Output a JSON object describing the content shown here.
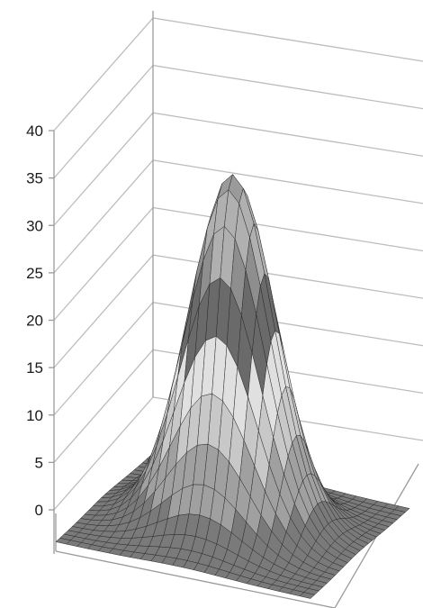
{
  "chart_data": {
    "type": "surface",
    "title": "",
    "xlabel": "",
    "ylabel": "",
    "zlabel": "",
    "zlim": [
      0,
      40
    ],
    "z_ticks": [
      "0",
      "5",
      "10",
      "15",
      "20",
      "25",
      "30",
      "35",
      "40"
    ],
    "grid": true,
    "legend": "none",
    "band_interval": 5,
    "surface_shape": "single central peak",
    "peak_value": 38,
    "base_value": 1,
    "band_colors": [
      "#7a7a7a",
      "#a0a0a0",
      "#c8c8c8",
      "#e0e0e0",
      "#6a6a6a",
      "#8e8e8e",
      "#b0b0b0",
      "#9a9a9a"
    ]
  }
}
